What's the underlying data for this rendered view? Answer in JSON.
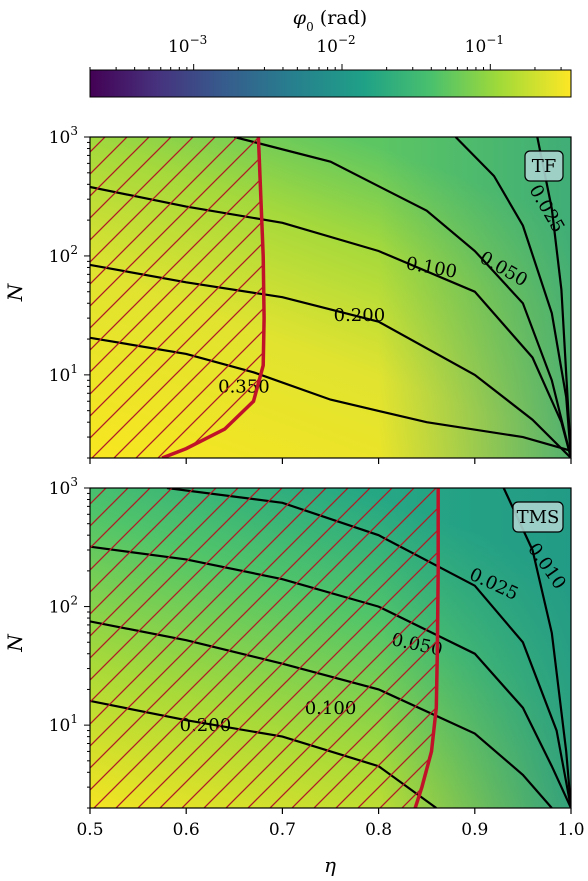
{
  "colorbar": {
    "label": "φ₀ (rad)",
    "label_symbol": "φ",
    "label_sub": "0",
    "label_unit": " (rad)",
    "scale": "log",
    "range": [
      0.0002,
      0.35
    ],
    "colormap": "viridis",
    "tick_labels": [
      {
        "value": 0.001,
        "base": "10",
        "exp": "−3"
      },
      {
        "value": 0.01,
        "base": "10",
        "exp": "−2"
      },
      {
        "value": 0.1,
        "base": "10",
        "exp": "−1"
      }
    ]
  },
  "chart_data": [
    {
      "type": "heatmap",
      "tag": "TF",
      "xlabel": "η",
      "ylabel": "N",
      "xlim": [
        0.5,
        1.0
      ],
      "ylim": [
        2,
        1000
      ],
      "y_scale": "log",
      "x_ticks": [
        "0.5",
        "0.6",
        "0.7",
        "0.8",
        "0.9",
        "1.0"
      ],
      "x_tick_labels_shown": false,
      "y_tick_labels": [
        {
          "value": 10,
          "base": "10",
          "exp": "1"
        },
        {
          "value": 100,
          "base": "10",
          "exp": "2"
        },
        {
          "value": 1000,
          "base": "10",
          "exp": "3"
        }
      ],
      "contours": [
        {
          "label": "0.350",
          "points": [
            [
              0.5,
              20.5
            ],
            [
              0.6,
              15.0
            ],
            [
              0.67,
              10.5
            ],
            [
              0.75,
              6.2
            ],
            [
              0.85,
              4.0
            ],
            [
              0.95,
              3.0
            ],
            [
              1.0,
              2.3
            ]
          ]
        },
        {
          "label": "0.200",
          "points": [
            [
              0.5,
              84.0
            ],
            [
              0.6,
              60.0
            ],
            [
              0.7,
              45.0
            ],
            [
              0.8,
              28.0
            ],
            [
              0.9,
              10.0
            ],
            [
              0.96,
              4.2
            ],
            [
              1.0,
              2.0
            ]
          ]
        },
        {
          "label": "0.100",
          "points": [
            [
              0.5,
              380.0
            ],
            [
              0.6,
              260.0
            ],
            [
              0.7,
              190.0
            ],
            [
              0.8,
              110.0
            ],
            [
              0.9,
              50.0
            ],
            [
              0.96,
              14.0
            ],
            [
              0.99,
              4.0
            ],
            [
              1.0,
              2.0
            ]
          ]
        },
        {
          "label": "0.050",
          "points": [
            [
              0.65,
              1000.0
            ],
            [
              0.75,
              620.0
            ],
            [
              0.85,
              240.0
            ],
            [
              0.9,
              110.0
            ],
            [
              0.95,
              40.0
            ],
            [
              0.98,
              9.0
            ],
            [
              1.0,
              2.0
            ]
          ]
        },
        {
          "label": "0.025",
          "points": [
            [
              0.88,
              1000.0
            ],
            [
              0.92,
              470.0
            ],
            [
              0.95,
              180.0
            ],
            [
              0.98,
              33.0
            ],
            [
              0.995,
              6.5
            ],
            [
              1.0,
              2.0
            ]
          ]
        },
        {
          "label": "",
          "points": [
            [
              0.965,
              1000.0
            ],
            [
              0.98,
              250.0
            ],
            [
              0.99,
              52.0
            ],
            [
              1.0,
              2.0
            ]
          ]
        }
      ],
      "boundary": {
        "points": [
          [
            0.675,
            1000.0
          ],
          [
            0.68,
            100.0
          ],
          [
            0.681,
            30.0
          ],
          [
            0.68,
            12.0
          ],
          [
            0.67,
            6.0
          ],
          [
            0.64,
            3.5
          ],
          [
            0.6,
            2.4
          ],
          [
            0.575,
            2.0
          ]
        ]
      },
      "colors": {
        "boundary": "#c0132a",
        "hatch": "#b01a26"
      }
    },
    {
      "type": "heatmap",
      "tag": "TMS",
      "xlabel": "η",
      "ylabel": "N",
      "xlim": [
        0.5,
        1.0
      ],
      "ylim": [
        2,
        1000
      ],
      "y_scale": "log",
      "x_ticks": [
        "0.5",
        "0.6",
        "0.7",
        "0.8",
        "0.9",
        "1.0"
      ],
      "x_tick_labels_shown": true,
      "y_tick_labels": [
        {
          "value": 10,
          "base": "10",
          "exp": "1"
        },
        {
          "value": 100,
          "base": "10",
          "exp": "2"
        },
        {
          "value": 1000,
          "base": "10",
          "exp": "3"
        }
      ],
      "contours": [
        {
          "label": "0.200",
          "points": [
            [
              0.5,
              16.0
            ],
            [
              0.6,
              11.0
            ],
            [
              0.7,
              8.0
            ],
            [
              0.8,
              4.5
            ],
            [
              0.86,
              2.0
            ]
          ]
        },
        {
          "label": "0.100",
          "points": [
            [
              0.5,
              75.0
            ],
            [
              0.6,
              52.0
            ],
            [
              0.7,
              33.0
            ],
            [
              0.8,
              20.0
            ],
            [
              0.9,
              8.5
            ],
            [
              0.95,
              3.8
            ],
            [
              0.98,
              2.0
            ]
          ]
        },
        {
          "label": "0.050",
          "points": [
            [
              0.5,
              320.0
            ],
            [
              0.6,
              250.0
            ],
            [
              0.7,
              170.0
            ],
            [
              0.8,
              100.0
            ],
            [
              0.9,
              40.0
            ],
            [
              0.95,
              14.0
            ],
            [
              0.98,
              4.5
            ],
            [
              1.0,
              2.0
            ]
          ]
        },
        {
          "label": "0.025",
          "points": [
            [
              0.58,
              1000.0
            ],
            [
              0.7,
              750.0
            ],
            [
              0.8,
              400.0
            ],
            [
              0.9,
              150.0
            ],
            [
              0.95,
              50.0
            ],
            [
              0.985,
              9.0
            ],
            [
              1.0,
              2.0
            ]
          ]
        },
        {
          "label": "0.010",
          "points": [
            [
              0.93,
              1000.0
            ],
            [
              0.96,
              300.0
            ],
            [
              0.98,
              60.0
            ],
            [
              0.995,
              6.0
            ],
            [
              1.0,
              2.0
            ]
          ]
        }
      ],
      "boundary": {
        "points": [
          [
            0.862,
            1000.0
          ],
          [
            0.862,
            200.0
          ],
          [
            0.861,
            40.0
          ],
          [
            0.86,
            14.0
          ],
          [
            0.855,
            6.0
          ],
          [
            0.845,
            3.0
          ],
          [
            0.838,
            2.0
          ]
        ]
      },
      "colors": {
        "boundary": "#c0132a",
        "hatch": "#b01a26"
      }
    }
  ]
}
